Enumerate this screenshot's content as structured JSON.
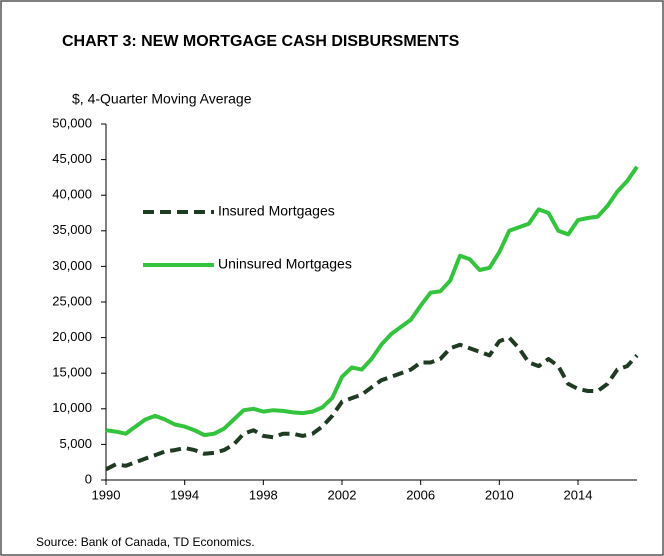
{
  "chart_data": {
    "type": "line",
    "title": "CHART 3: NEW MORTGAGE CASH DISBURSMENTS",
    "y_axis_label": "$, 4-Quarter Moving Average",
    "source": "Source: Bank of Canada, TD Economics.",
    "x": [
      1990,
      1990.5,
      1991,
      1991.5,
      1992,
      1992.5,
      1993,
      1993.5,
      1994,
      1994.5,
      1995,
      1995.5,
      1996,
      1996.5,
      1997,
      1997.5,
      1998,
      1998.5,
      1999,
      1999.5,
      2000,
      2000.5,
      2001,
      2001.5,
      2002,
      2002.5,
      2003,
      2003.5,
      2004,
      2004.5,
      2005,
      2005.5,
      2006,
      2006.5,
      2007,
      2007.5,
      2008,
      2008.5,
      2009,
      2009.5,
      2010,
      2010.5,
      2011,
      2011.5,
      2012,
      2012.5,
      2013,
      2013.5,
      2014,
      2014.5,
      2015,
      2015.5,
      2016,
      2016.5,
      2017
    ],
    "series": [
      {
        "name": "Insured Mortgages",
        "color": "#1f3b22",
        "dashed": true,
        "values": [
          1500,
          2200,
          2000,
          2500,
          3000,
          3500,
          4000,
          4200,
          4500,
          4200,
          3700,
          3800,
          4200,
          5000,
          6500,
          7000,
          6200,
          6000,
          6500,
          6500,
          6200,
          6500,
          7500,
          9000,
          11000,
          11500,
          12000,
          13000,
          14000,
          14500,
          15000,
          15500,
          16500,
          16500,
          17000,
          18500,
          19000,
          18500,
          18000,
          17500,
          19500,
          20000,
          18500,
          16500,
          16000,
          17000,
          16000,
          13500,
          12800,
          12500,
          12500,
          13500,
          15500,
          16000,
          17500
        ]
      },
      {
        "name": "Uninsured Mortgages",
        "color": "#33c33c",
        "dashed": false,
        "values": [
          7000,
          6800,
          6500,
          7500,
          8500,
          9000,
          8500,
          7800,
          7500,
          7000,
          6300,
          6500,
          7200,
          8500,
          9800,
          10000,
          9600,
          9800,
          9700,
          9500,
          9400,
          9600,
          10200,
          11500,
          14500,
          15800,
          15500,
          17000,
          19000,
          20500,
          21500,
          22500,
          24500,
          26300,
          26500,
          28000,
          31500,
          31000,
          29500,
          29800,
          32000,
          35000,
          35500,
          36000,
          38000,
          37500,
          35000,
          34500,
          36500,
          36800,
          37000,
          38500,
          40500,
          42000,
          44000
        ]
      }
    ],
    "xlim": [
      1990,
      2017
    ],
    "xticks": [
      1990,
      1994,
      1998,
      2002,
      2006,
      2010,
      2014
    ],
    "ylim": [
      0,
      50000
    ],
    "yticks": [
      0,
      {
        "value": 5000,
        "label": "5,000"
      },
      {
        "value": 10000,
        "label": "10,000"
      },
      {
        "value": 15000,
        "label": "15,000"
      },
      {
        "value": 20000,
        "label": "20,000"
      },
      {
        "value": 25000,
        "label": "25,000"
      },
      {
        "value": 30000,
        "label": "30,000"
      },
      {
        "value": 35000,
        "label": "35,000"
      },
      {
        "value": 40000,
        "label": "40,000"
      },
      {
        "value": 45000,
        "label": "45,000"
      },
      {
        "value": 50000,
        "label": "50,000"
      }
    ],
    "grid": false
  }
}
